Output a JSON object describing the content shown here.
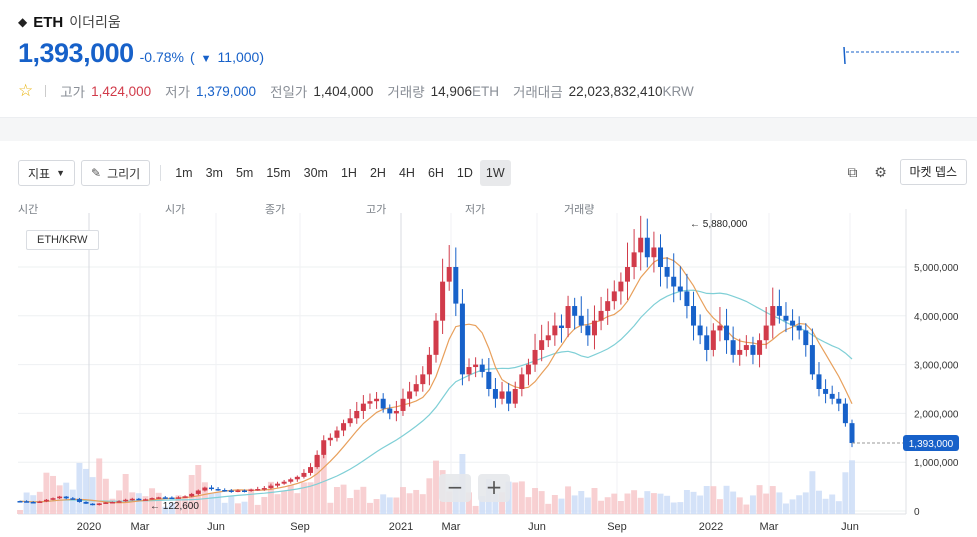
{
  "header": {
    "symbol": "ETH",
    "name": "이더리움",
    "price": "1,393,000",
    "change_pct": "-0.78%",
    "change_open": "(",
    "change_arrow": "▼",
    "change_value": "11,000)",
    "stats": {
      "high_label": "고가",
      "high": "1,424,000",
      "low_label": "저가",
      "low": "1,379,000",
      "prev_label": "전일가",
      "prev": "1,404,000",
      "vol_label": "거래량",
      "vol": "14,906",
      "vol_unit": "ETH",
      "amt_label": "거래대금",
      "amt": "22,023,832,410",
      "amt_unit": "KRW"
    }
  },
  "toolbar": {
    "indicator": "지표",
    "draw": "그리기",
    "intervals": [
      "1m",
      "3m",
      "5m",
      "15m",
      "30m",
      "1H",
      "2H",
      "4H",
      "6H",
      "1D",
      "1W"
    ],
    "active_interval": "1W",
    "market_depth": "마켓 뎁스"
  },
  "legend_headers": [
    "시간",
    "시가",
    "종가",
    "고가",
    "저가",
    "거래량"
  ],
  "pair": "ETH/KRW",
  "colors": {
    "up": "#d13b4a",
    "down": "#1761c9",
    "ma_short": "#e8a05c",
    "ma_long": "#7fcfd6"
  },
  "chart_data": {
    "type": "candlestick",
    "x_ticks": [
      "2020",
      "Mar",
      "Jun",
      "Sep",
      "2021",
      "Mar",
      "Jun",
      "Sep",
      "2022",
      "Mar",
      "Jun"
    ],
    "y_ticks": [
      "5,000,000",
      "4,000,000",
      "3,000,000",
      "2,000,000",
      "1,000,000",
      "0"
    ],
    "ylim": [
      0,
      6000000
    ],
    "current_price_label": "1,393,000",
    "max_label": "5,880,000",
    "min_label": "122,600",
    "max_marker": "←",
    "min_marker": "←",
    "closes": [
      200000,
      185000,
      178000,
      195000,
      230000,
      262000,
      295000,
      260000,
      245000,
      185000,
      150000,
      122600,
      155000,
      175000,
      185000,
      200000,
      230000,
      250000,
      235000,
      240000,
      265000,
      280000,
      275000,
      270000,
      280000,
      300000,
      350000,
      420000,
      480000,
      450000,
      430000,
      420000,
      405000,
      420000,
      410000,
      440000,
      450000,
      470000,
      520000,
      560000,
      600000,
      650000,
      700000,
      780000,
      900000,
      1150000,
      1450000,
      1500000,
      1650000,
      1800000,
      1900000,
      2050000,
      2200000,
      2250000,
      2300000,
      2100000,
      2000000,
      2050000,
      2300000,
      2450000,
      2600000,
      2800000,
      3200000,
      3900000,
      4700000,
      5000000,
      4250000,
      2800000,
      2950000,
      3000000,
      2850000,
      2500000,
      2300000,
      2450000,
      2200000,
      2500000,
      2800000,
      3000000,
      3300000,
      3500000,
      3600000,
      3800000,
      3750000,
      4200000,
      4000000,
      3800000,
      3600000,
      3900000,
      4100000,
      4300000,
      4500000,
      4700000,
      5000000,
      5300000,
      5600000,
      5200000,
      5400000,
      5000000,
      4800000,
      4600000,
      4500000,
      4200000,
      3800000,
      3600000,
      3300000,
      3700000,
      3800000,
      3500000,
      3200000,
      3300000,
      3400000,
      3200000,
      3500000,
      3800000,
      4200000,
      4000000,
      3900000,
      3800000,
      3700000,
      3400000,
      2800000,
      2500000,
      2400000,
      2300000,
      2200000,
      1800000,
      1393000
    ]
  }
}
